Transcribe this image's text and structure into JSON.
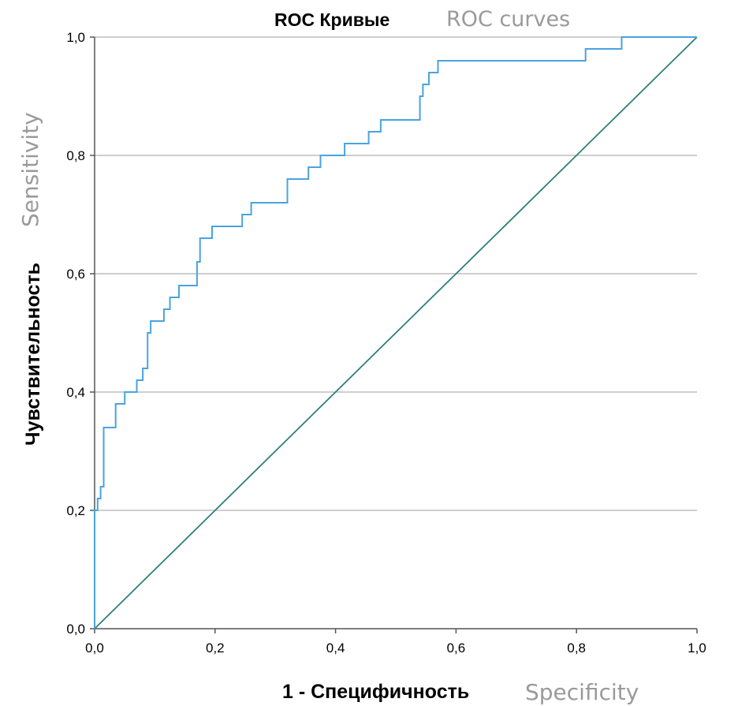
{
  "chart_data": {
    "type": "line",
    "title": "ROC Кривые",
    "title_translation": "ROC curves",
    "xlabel": "1 - Специфичность",
    "xlabel_translation": "Specificity",
    "ylabel": "Чувствительность",
    "ylabel_translation": "Sensitivity",
    "xlim": [
      0,
      1
    ],
    "ylim": [
      0,
      1
    ],
    "x_ticks": [
      "0,0",
      "0,2",
      "0,4",
      "0,6",
      "0,8",
      "1,0"
    ],
    "y_ticks": [
      "0,0",
      "0,2",
      "0,4",
      "0,6",
      "0,8",
      "1,0"
    ],
    "x_tick_values": [
      0,
      0.2,
      0.4,
      0.6,
      0.8,
      1.0
    ],
    "y_tick_values": [
      0,
      0.2,
      0.4,
      0.6,
      0.8,
      1.0
    ],
    "grid": "horizontal",
    "series": [
      {
        "color": "#4aa3df",
        "points": [
          [
            0,
            0
          ],
          [
            0,
            0.2
          ],
          [
            0.005,
            0.2
          ],
          [
            0.005,
            0.22
          ],
          [
            0.01,
            0.22
          ],
          [
            0.01,
            0.24
          ],
          [
            0.015,
            0.24
          ],
          [
            0.015,
            0.34
          ],
          [
            0.035,
            0.34
          ],
          [
            0.035,
            0.38
          ],
          [
            0.05,
            0.38
          ],
          [
            0.05,
            0.4
          ],
          [
            0.07,
            0.4
          ],
          [
            0.07,
            0.42
          ],
          [
            0.08,
            0.42
          ],
          [
            0.08,
            0.44
          ],
          [
            0.088,
            0.44
          ],
          [
            0.088,
            0.5
          ],
          [
            0.093,
            0.5
          ],
          [
            0.093,
            0.52
          ],
          [
            0.115,
            0.52
          ],
          [
            0.115,
            0.54
          ],
          [
            0.125,
            0.54
          ],
          [
            0.125,
            0.56
          ],
          [
            0.14,
            0.56
          ],
          [
            0.14,
            0.58
          ],
          [
            0.17,
            0.58
          ],
          [
            0.17,
            0.62
          ],
          [
            0.175,
            0.62
          ],
          [
            0.175,
            0.66
          ],
          [
            0.195,
            0.66
          ],
          [
            0.195,
            0.68
          ],
          [
            0.245,
            0.68
          ],
          [
            0.245,
            0.7
          ],
          [
            0.26,
            0.7
          ],
          [
            0.26,
            0.72
          ],
          [
            0.32,
            0.72
          ],
          [
            0.32,
            0.76
          ],
          [
            0.355,
            0.76
          ],
          [
            0.355,
            0.78
          ],
          [
            0.375,
            0.78
          ],
          [
            0.375,
            0.8
          ],
          [
            0.415,
            0.8
          ],
          [
            0.415,
            0.82
          ],
          [
            0.455,
            0.82
          ],
          [
            0.455,
            0.84
          ],
          [
            0.475,
            0.84
          ],
          [
            0.475,
            0.86
          ],
          [
            0.54,
            0.86
          ],
          [
            0.54,
            0.9
          ],
          [
            0.545,
            0.9
          ],
          [
            0.545,
            0.92
          ],
          [
            0.555,
            0.92
          ],
          [
            0.555,
            0.94
          ],
          [
            0.57,
            0.94
          ],
          [
            0.57,
            0.96
          ],
          [
            0.815,
            0.96
          ],
          [
            0.815,
            0.98
          ],
          [
            0.875,
            0.98
          ],
          [
            0.875,
            1.0
          ],
          [
            1.0,
            1.0
          ]
        ]
      },
      {
        "name": "reference line",
        "color": "#2e7f7a",
        "points": [
          [
            0,
            0
          ],
          [
            1,
            1
          ]
        ]
      }
    ]
  }
}
